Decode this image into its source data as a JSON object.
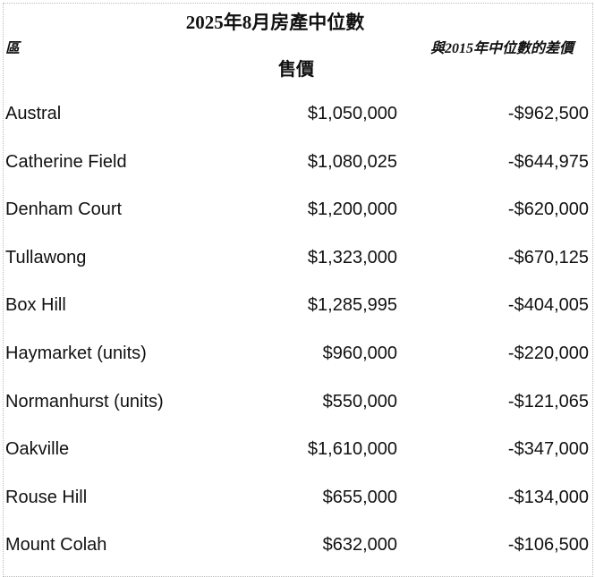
{
  "title": "2025年8月房產中位數",
  "headers": {
    "area": "區",
    "price": "售價",
    "diff": "與2015年中位數的差價"
  },
  "rows": [
    {
      "area": "Austral",
      "price": "$1,050,000",
      "diff": "-$962,500"
    },
    {
      "area": "Catherine Field",
      "price": "$1,080,025",
      "diff": "-$644,975"
    },
    {
      "area": "Denham Court",
      "price": "$1,200,000",
      "diff": "-$620,000"
    },
    {
      "area": "Tullawong",
      "price": "$1,323,000",
      "diff": "-$670,125"
    },
    {
      "area": "Box Hill",
      "price": "$1,285,995",
      "diff": "-$404,005"
    },
    {
      "area": "Haymarket (units)",
      "price": "$960,000",
      "diff": "-$220,000"
    },
    {
      "area": "Normanhurst (units)",
      "price": "$550,000",
      "diff": "-$121,065"
    },
    {
      "area": "Oakville",
      "price": "$1,610,000",
      "diff": "-$347,000"
    },
    {
      "area": "Rouse Hill",
      "price": "$655,000",
      "diff": "-$134,000"
    },
    {
      "area": "Mount Colah",
      "price": "$632,000",
      "diff": "-$106,500"
    }
  ]
}
